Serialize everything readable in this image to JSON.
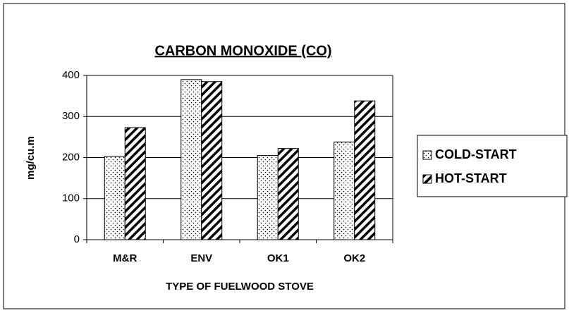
{
  "chart_data": {
    "type": "bar",
    "title": "CARBON MONOXIDE (CO)",
    "x_label": "TYPE OF FUELWOOD STOVE",
    "y_label": "mg/cu.m",
    "categories": [
      "M&R",
      "ENV",
      "OK1",
      "OK2"
    ],
    "series": [
      {
        "name": "COLD-START",
        "color": "#000000",
        "pattern": "dots",
        "values": [
          203,
          390,
          205,
          238
        ]
      },
      {
        "name": "HOT-START",
        "color": "#000000",
        "pattern": "hatch",
        "values": [
          273,
          385,
          222,
          338
        ]
      }
    ],
    "ylim": [
      0,
      400
    ],
    "yticks": [
      0,
      100,
      200,
      300,
      400
    ],
    "grid": true,
    "legend": "right"
  }
}
